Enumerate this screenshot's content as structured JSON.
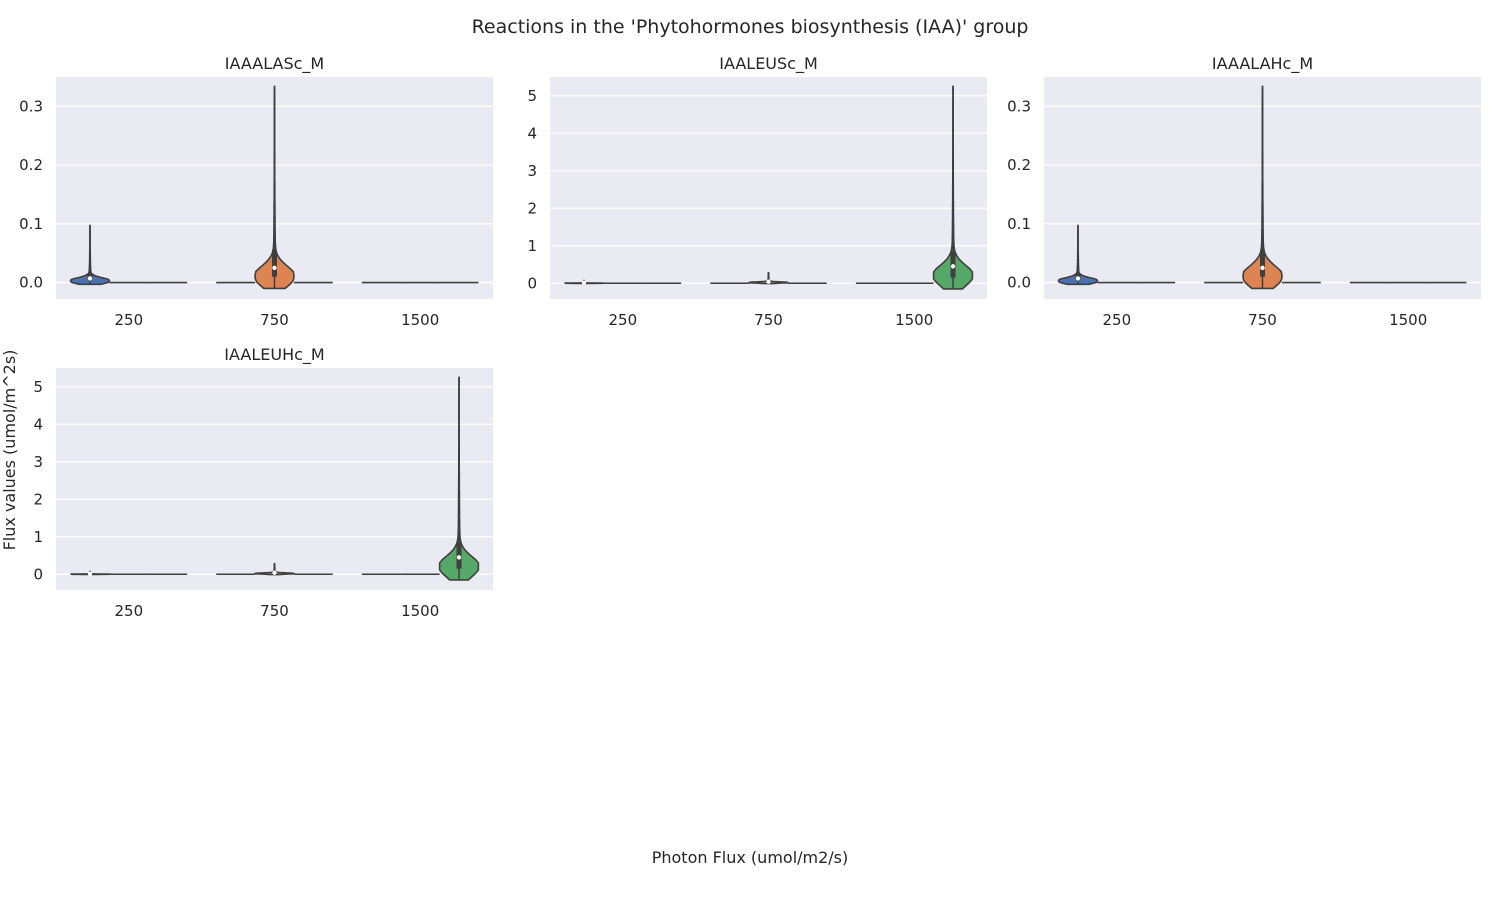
{
  "figure": {
    "title": "Reactions in the 'Phytohormones biosynthesis (IAA)' group",
    "xlabel": "Photon Flux (umol/m2/s)",
    "ylabel": "Flux values (umol/m^2s)"
  },
  "colors": {
    "panel_bg": "#eaeaf2",
    "grid": "#ffffff",
    "outline": "#3f3f3f",
    "series": [
      "#4c72b0",
      "#dd8452",
      "#55a868"
    ]
  },
  "chart_data": [
    {
      "type": "violin",
      "title": "IAAALASc_M",
      "categories": [
        "250",
        "750",
        "1500"
      ],
      "hue": [
        "250",
        "750",
        "1500"
      ],
      "ylim": [
        -0.028,
        0.35
      ],
      "yticks": [
        0.0,
        0.1,
        0.2,
        0.3
      ],
      "ytick_labels": [
        "0.0",
        "0.1",
        "0.2",
        "0.3"
      ],
      "grid": true,
      "violins": [
        {
          "category": "250",
          "hue": "250",
          "min": -0.003,
          "max": 0.097,
          "q1": 0.003,
          "median": 0.007,
          "q3": 0.015
        },
        {
          "category": "250",
          "hue": "750",
          "min": 0,
          "max": 0,
          "median": 0
        },
        {
          "category": "250",
          "hue": "1500",
          "min": 0,
          "max": 0,
          "median": 0
        },
        {
          "category": "750",
          "hue": "250",
          "min": 0,
          "max": 0,
          "median": 0
        },
        {
          "category": "750",
          "hue": "750",
          "min": -0.01,
          "max": 0.335,
          "q1": 0.01,
          "median": 0.025,
          "q3": 0.055
        },
        {
          "category": "750",
          "hue": "1500",
          "min": 0,
          "max": 0,
          "median": 0
        },
        {
          "category": "1500",
          "hue": "250",
          "min": 0,
          "max": 0,
          "median": 0
        },
        {
          "category": "1500",
          "hue": "750",
          "min": 0,
          "max": 0,
          "median": 0
        },
        {
          "category": "1500",
          "hue": "1500",
          "min": 0,
          "max": 0,
          "median": 0
        }
      ]
    },
    {
      "type": "violin",
      "title": "IAALEUSc_M",
      "categories": [
        "250",
        "750",
        "1500"
      ],
      "hue": [
        "250",
        "750",
        "1500"
      ],
      "ylim": [
        -0.42,
        5.5
      ],
      "yticks": [
        0,
        1,
        2,
        3,
        4,
        5
      ],
      "ytick_labels": [
        "0",
        "1",
        "2",
        "3",
        "4",
        "5"
      ],
      "grid": true,
      "violins": [
        {
          "category": "250",
          "hue": "250",
          "min": -0.01,
          "max": 0.07,
          "q1": 0.0,
          "median": 0.01,
          "q3": 0.02
        },
        {
          "category": "250",
          "hue": "750",
          "min": 0,
          "max": 0,
          "median": 0
        },
        {
          "category": "250",
          "hue": "1500",
          "min": 0,
          "max": 0,
          "median": 0
        },
        {
          "category": "750",
          "hue": "250",
          "min": 0,
          "max": 0,
          "median": 0
        },
        {
          "category": "750",
          "hue": "750",
          "min": -0.01,
          "max": 0.3,
          "q1": 0.02,
          "median": 0.04,
          "q3": 0.08
        },
        {
          "category": "750",
          "hue": "1500",
          "min": 0,
          "max": 0,
          "median": 0
        },
        {
          "category": "1500",
          "hue": "250",
          "min": 0,
          "max": 0,
          "median": 0
        },
        {
          "category": "1500",
          "hue": "750",
          "min": 0,
          "max": 0,
          "median": 0
        },
        {
          "category": "1500",
          "hue": "1500",
          "min": -0.15,
          "max": 5.25,
          "q1": 0.15,
          "median": 0.45,
          "q3": 0.85
        }
      ]
    },
    {
      "type": "violin",
      "title": "IAAALAHc_M",
      "categories": [
        "250",
        "750",
        "1500"
      ],
      "hue": [
        "250",
        "750",
        "1500"
      ],
      "ylim": [
        -0.028,
        0.35
      ],
      "yticks": [
        0.0,
        0.1,
        0.2,
        0.3
      ],
      "ytick_labels": [
        "0.0",
        "0.1",
        "0.2",
        "0.3"
      ],
      "grid": true,
      "violins": [
        {
          "category": "250",
          "hue": "250",
          "min": -0.003,
          "max": 0.097,
          "q1": 0.003,
          "median": 0.007,
          "q3": 0.015
        },
        {
          "category": "250",
          "hue": "750",
          "min": 0,
          "max": 0,
          "median": 0
        },
        {
          "category": "250",
          "hue": "1500",
          "min": 0,
          "max": 0,
          "median": 0
        },
        {
          "category": "750",
          "hue": "250",
          "min": 0,
          "max": 0,
          "median": 0
        },
        {
          "category": "750",
          "hue": "750",
          "min": -0.01,
          "max": 0.335,
          "q1": 0.01,
          "median": 0.025,
          "q3": 0.055
        },
        {
          "category": "750",
          "hue": "1500",
          "min": 0,
          "max": 0,
          "median": 0
        },
        {
          "category": "1500",
          "hue": "250",
          "min": 0,
          "max": 0,
          "median": 0
        },
        {
          "category": "1500",
          "hue": "750",
          "min": 0,
          "max": 0,
          "median": 0
        },
        {
          "category": "1500",
          "hue": "1500",
          "min": 0,
          "max": 0,
          "median": 0
        }
      ]
    },
    {
      "type": "violin",
      "title": "IAALEUHc_M",
      "categories": [
        "250",
        "750",
        "1500"
      ],
      "hue": [
        "250",
        "750",
        "1500"
      ],
      "ylim": [
        -0.42,
        5.5
      ],
      "yticks": [
        0,
        1,
        2,
        3,
        4,
        5
      ],
      "ytick_labels": [
        "0",
        "1",
        "2",
        "3",
        "4",
        "5"
      ],
      "grid": true,
      "violins": [
        {
          "category": "250",
          "hue": "250",
          "min": -0.01,
          "max": 0.07,
          "q1": 0.0,
          "median": 0.01,
          "q3": 0.02
        },
        {
          "category": "250",
          "hue": "750",
          "min": 0,
          "max": 0,
          "median": 0
        },
        {
          "category": "250",
          "hue": "1500",
          "min": 0,
          "max": 0,
          "median": 0
        },
        {
          "category": "750",
          "hue": "250",
          "min": 0,
          "max": 0,
          "median": 0
        },
        {
          "category": "750",
          "hue": "750",
          "min": -0.01,
          "max": 0.3,
          "q1": 0.02,
          "median": 0.04,
          "q3": 0.08
        },
        {
          "category": "750",
          "hue": "1500",
          "min": 0,
          "max": 0,
          "median": 0
        },
        {
          "category": "1500",
          "hue": "250",
          "min": 0,
          "max": 0,
          "median": 0
        },
        {
          "category": "1500",
          "hue": "750",
          "min": 0,
          "max": 0,
          "median": 0
        },
        {
          "category": "1500",
          "hue": "1500",
          "min": -0.15,
          "max": 5.25,
          "q1": 0.15,
          "median": 0.45,
          "q3": 0.85
        }
      ]
    }
  ]
}
